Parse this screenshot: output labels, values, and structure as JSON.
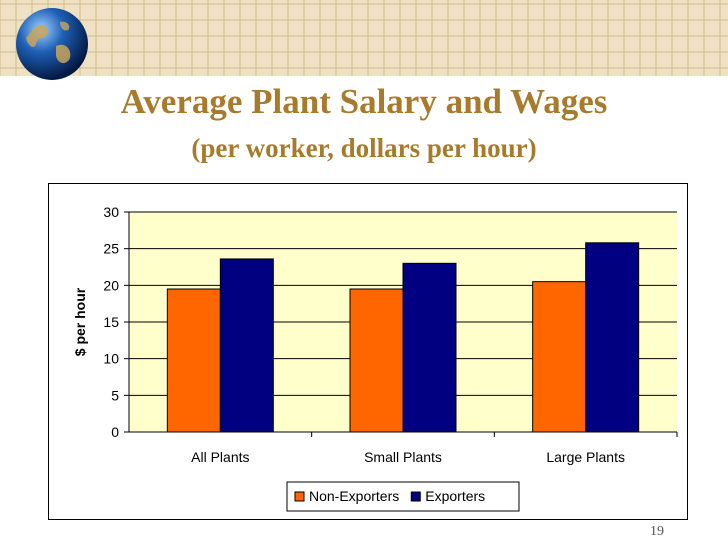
{
  "title": "Average Plant Salary and Wages",
  "subtitle": "(per worker, dollars per hour)",
  "page_number": "19",
  "colors": {
    "header_bg": "#efe2c4",
    "grid_line": "#d2b988",
    "title": "#a77a2c",
    "plot_bg": "#ffffcc",
    "non_exporters": "#ff6600",
    "exporters": "#000080"
  },
  "chart_data": {
    "type": "bar",
    "title": "",
    "xlabel": "",
    "ylabel": "$ per hour",
    "ylim": [
      0,
      30
    ],
    "yticks": [
      0,
      5,
      10,
      15,
      20,
      25,
      30
    ],
    "categories": [
      "All Plants",
      "Small Plants",
      "Large Plants"
    ],
    "series": [
      {
        "name": "Non-Exporters",
        "color": "#ff6600",
        "values": [
          19.5,
          19.5,
          20.5
        ]
      },
      {
        "name": "Exporters",
        "color": "#000080",
        "values": [
          23.6,
          23.0,
          25.8
        ]
      }
    ],
    "grid": true,
    "legend_position": "bottom"
  }
}
